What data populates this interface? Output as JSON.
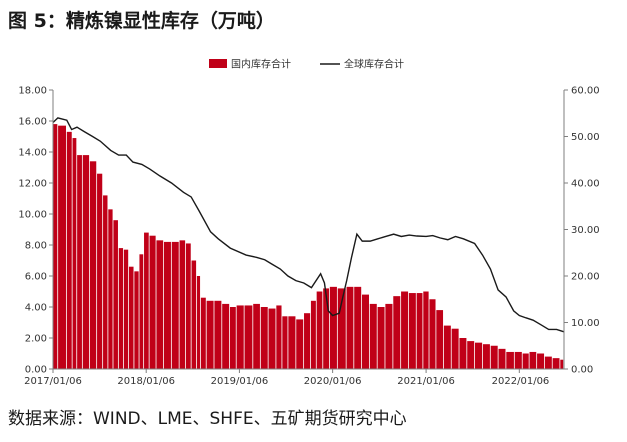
{
  "figure": {
    "title": "图 5：精炼镍显性库存（万吨）",
    "source": "数据来源：WIND、LME、SHFE、五矿期货研究中心"
  },
  "colors": {
    "bar": "#c00018",
    "line": "#1a1a1a",
    "axis": "#7f7f7f",
    "text": "#333333"
  },
  "chart_data": {
    "type": "bar",
    "title": "",
    "xlabel": "",
    "ylabel": "",
    "ylim_left": [
      0,
      18
    ],
    "ylim_right": [
      0,
      60
    ],
    "y_ticks_left": [
      "0.00",
      "2.00",
      "4.00",
      "6.00",
      "8.00",
      "10.00",
      "12.00",
      "14.00",
      "16.00",
      "18.00"
    ],
    "y_ticks_right": [
      "0.00",
      "10.00",
      "20.00",
      "30.00",
      "40.00",
      "50.00",
      "60.00"
    ],
    "x_ticks": [
      "2017/01/06",
      "2018/01/06",
      "2019/01/06",
      "2020/01/06",
      "2021/01/06",
      "2022/01/06"
    ],
    "x_range": [
      "2017/01/06",
      "2022/06/30"
    ],
    "grid": false,
    "legend_position": "top",
    "series": [
      {
        "name": "国内库存合计",
        "type": "bar",
        "axis": "left",
        "points": [
          [
            "2017/01/06",
            15.8
          ],
          [
            "2017/02/15",
            15.7
          ],
          [
            "2017/03/15",
            15.3
          ],
          [
            "2017/04/01",
            14.9
          ],
          [
            "2017/04/20",
            13.8
          ],
          [
            "2017/05/15",
            13.8
          ],
          [
            "2017/06/15",
            13.4
          ],
          [
            "2017/07/10",
            12.6
          ],
          [
            "2017/08/01",
            11.2
          ],
          [
            "2017/08/20",
            10.3
          ],
          [
            "2017/09/10",
            9.6
          ],
          [
            "2017/10/01",
            7.8
          ],
          [
            "2017/10/20",
            7.7
          ],
          [
            "2017/11/10",
            6.6
          ],
          [
            "2017/12/01",
            6.3
          ],
          [
            "2017/12/20",
            7.4
          ],
          [
            "2018/01/06",
            8.8
          ],
          [
            "2018/02/01",
            8.6
          ],
          [
            "2018/03/01",
            8.3
          ],
          [
            "2018/04/01",
            8.2
          ],
          [
            "2018/05/01",
            8.2
          ],
          [
            "2018/06/01",
            8.3
          ],
          [
            "2018/06/20",
            8.1
          ],
          [
            "2018/07/15",
            7.0
          ],
          [
            "2018/08/01",
            6.0
          ],
          [
            "2018/08/15",
            4.6
          ],
          [
            "2018/09/15",
            4.4
          ],
          [
            "2018/10/15",
            4.4
          ],
          [
            "2018/11/15",
            4.2
          ],
          [
            "2018/12/15",
            4.0
          ],
          [
            "2019/01/06",
            4.1
          ],
          [
            "2019/02/15",
            4.1
          ],
          [
            "2019/03/15",
            4.2
          ],
          [
            "2019/04/15",
            4.0
          ],
          [
            "2019/05/15",
            3.9
          ],
          [
            "2019/06/15",
            4.1
          ],
          [
            "2019/07/01",
            3.4
          ],
          [
            "2019/08/01",
            3.4
          ],
          [
            "2019/09/01",
            3.2
          ],
          [
            "2019/10/01",
            3.6
          ],
          [
            "2019/10/25",
            4.4
          ],
          [
            "2019/11/15",
            5.0
          ],
          [
            "2019/12/15",
            5.2
          ],
          [
            "2020/01/06",
            5.3
          ],
          [
            "2020/02/15",
            5.2
          ],
          [
            "2020/03/15",
            5.3
          ],
          [
            "2020/04/15",
            5.3
          ],
          [
            "2020/05/15",
            4.8
          ],
          [
            "2020/06/15",
            4.2
          ],
          [
            "2020/07/15",
            4.0
          ],
          [
            "2020/08/15",
            4.2
          ],
          [
            "2020/09/15",
            4.7
          ],
          [
            "2020/10/15",
            5.0
          ],
          [
            "2020/11/15",
            4.9
          ],
          [
            "2020/12/15",
            4.9
          ],
          [
            "2021/01/06",
            5.0
          ],
          [
            "2021/02/01",
            4.5
          ],
          [
            "2021/03/01",
            3.8
          ],
          [
            "2021/04/01",
            2.8
          ],
          [
            "2021/05/01",
            2.6
          ],
          [
            "2021/06/01",
            2.0
          ],
          [
            "2021/07/01",
            1.8
          ],
          [
            "2021/08/01",
            1.7
          ],
          [
            "2021/09/01",
            1.6
          ],
          [
            "2021/10/01",
            1.5
          ],
          [
            "2021/11/01",
            1.3
          ],
          [
            "2021/12/01",
            1.1
          ],
          [
            "2022/01/06",
            1.1
          ],
          [
            "2022/02/01",
            1.0
          ],
          [
            "2022/03/01",
            1.1
          ],
          [
            "2022/04/01",
            1.0
          ],
          [
            "2022/05/01",
            0.8
          ],
          [
            "2022/06/01",
            0.7
          ],
          [
            "2022/06/30",
            0.6
          ]
        ]
      },
      {
        "name": "全球库存合计",
        "type": "line",
        "axis": "right",
        "points": [
          [
            "2017/01/06",
            53.0
          ],
          [
            "2017/01/25",
            54.0
          ],
          [
            "2017/03/01",
            53.5
          ],
          [
            "2017/03/20",
            51.5
          ],
          [
            "2017/04/10",
            52.0
          ],
          [
            "2017/05/10",
            51.0
          ],
          [
            "2017/06/10",
            50.0
          ],
          [
            "2017/07/10",
            49.0
          ],
          [
            "2017/08/20",
            47.0
          ],
          [
            "2017/09/20",
            46.0
          ],
          [
            "2017/10/20",
            46.0
          ],
          [
            "2017/11/15",
            44.5
          ],
          [
            "2017/12/20",
            44.0
          ],
          [
            "2018/01/20",
            43.0
          ],
          [
            "2018/03/01",
            41.5
          ],
          [
            "2018/04/15",
            40.0
          ],
          [
            "2018/06/01",
            38.0
          ],
          [
            "2018/07/01",
            37.0
          ],
          [
            "2018/08/01",
            34.0
          ],
          [
            "2018/09/15",
            29.5
          ],
          [
            "2018/10/15",
            28.0
          ],
          [
            "2018/12/01",
            26.0
          ],
          [
            "2019/02/01",
            24.5
          ],
          [
            "2019/03/15",
            24.0
          ],
          [
            "2019/04/15",
            23.5
          ],
          [
            "2019/05/15",
            22.5
          ],
          [
            "2019/06/15",
            21.5
          ],
          [
            "2019/07/15",
            20.0
          ],
          [
            "2019/08/15",
            19.0
          ],
          [
            "2019/09/15",
            18.5
          ],
          [
            "2019/10/15",
            17.5
          ],
          [
            "2019/11/20",
            20.5
          ],
          [
            "2019/12/05",
            18.5
          ],
          [
            "2019/12/20",
            12.5
          ],
          [
            "2020/01/06",
            11.5
          ],
          [
            "2020/02/01",
            12.0
          ],
          [
            "2020/02/15",
            15.5
          ],
          [
            "2020/03/01",
            19.0
          ],
          [
            "2020/03/20",
            24.0
          ],
          [
            "2020/04/10",
            29.0
          ],
          [
            "2020/05/01",
            27.5
          ],
          [
            "2020/06/01",
            27.5
          ],
          [
            "2020/07/01",
            28.0
          ],
          [
            "2020/08/01",
            28.5
          ],
          [
            "2020/09/01",
            29.0
          ],
          [
            "2020/10/01",
            28.5
          ],
          [
            "2020/11/01",
            28.8
          ],
          [
            "2020/12/01",
            28.6
          ],
          [
            "2021/01/06",
            28.5
          ],
          [
            "2021/02/01",
            28.7
          ],
          [
            "2021/03/01",
            28.2
          ],
          [
            "2021/04/01",
            27.8
          ],
          [
            "2021/05/01",
            28.5
          ],
          [
            "2021/06/01",
            28.0
          ],
          [
            "2021/07/15",
            27.0
          ],
          [
            "2021/08/15",
            24.5
          ],
          [
            "2021/09/15",
            21.5
          ],
          [
            "2021/10/15",
            17.0
          ],
          [
            "2021/11/15",
            15.5
          ],
          [
            "2021/12/15",
            12.5
          ],
          [
            "2022/01/06",
            11.5
          ],
          [
            "2022/02/01",
            11.0
          ],
          [
            "2022/03/01",
            10.5
          ],
          [
            "2022/04/01",
            9.5
          ],
          [
            "2022/05/01",
            8.5
          ],
          [
            "2022/06/01",
            8.5
          ],
          [
            "2022/06/30",
            8.0
          ]
        ]
      }
    ]
  }
}
